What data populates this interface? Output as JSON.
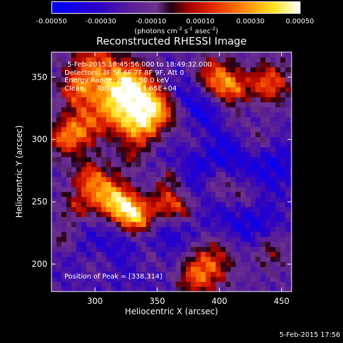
{
  "chart_data": {
    "type": "heatmap",
    "title": "Reconstructed RHESSI Image",
    "xlabel": "Heliocentric X (arcsec)",
    "ylabel": "Heliocentric Y (arcsec)",
    "xlim": [
      265,
      458
    ],
    "ylim": [
      178,
      370
    ],
    "x_ticks": [
      300,
      350,
      400,
      450
    ],
    "y_ticks": [
      200,
      250,
      300,
      350
    ],
    "colorbar": {
      "range": [
        -0.0005,
        0.0005
      ],
      "tick_labels": [
        "-0.00050",
        "-0.00030",
        "-0.00010",
        "0.00010",
        "0.00030",
        "0.00050"
      ],
      "unit_text": "(photons cm",
      "unit_exp1": "-2",
      "unit_mid1": " s",
      "unit_exp2": "-1",
      "unit_mid2": " asec",
      "unit_exp3": "-2",
      "unit_end": ")"
    },
    "annotations": {
      "time_range": "5-Feb-2015 18:45:56.000 to 18:49:32.000",
      "detectors": "Detectors: 3F 5F 6F 7F 8F 9F, Att 0",
      "energy_range": "Energy Range: 25.0 - 50.0 keV",
      "clean_total": "Clean      Total counts: 1.65E+04",
      "peak_position": "Position of Peak = [338,314]"
    },
    "peak": [
      338,
      314
    ],
    "colors": {
      "axis": "#ffffff",
      "background": "#000000"
    }
  },
  "footer": {
    "date": "5-Feb-2015 17:56"
  }
}
